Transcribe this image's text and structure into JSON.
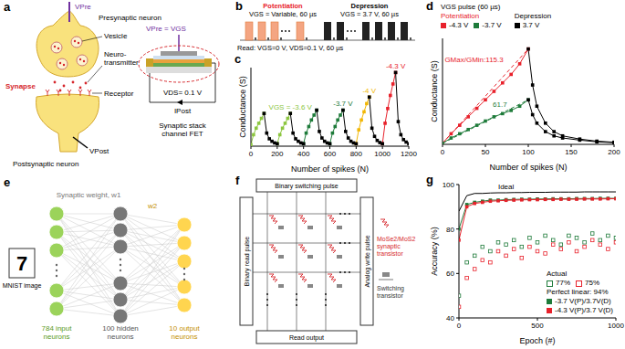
{
  "diagrams": {
    "a": {
      "panel": "a",
      "presynaptic": "Presynaptic neuron",
      "vesicle": "Vesicle",
      "neurotransmitter": "Neuro-transmitter",
      "synapse": "Synapse",
      "receptor": "Receptor",
      "postsynaptic": "Postsynaptic neuron",
      "v_pre": "VPre",
      "v_post": "VPost",
      "gate": "VPre = VGS",
      "drain": "VDS= 0.1 V",
      "current": "IPost",
      "device": "Synaptic stack channel FET"
    },
    "b": {
      "panel": "b",
      "potentiation": "Potentiation",
      "potentiation_pulse": "VGS = Variable, 60 µs",
      "depression": "Depression",
      "depression_pulse": "VGS = 3.7 V, 60 µs",
      "read": "Read: VGS=0 V, VDS=0.1 V, 60 µs"
    },
    "e": {
      "panel": "e",
      "digit": "7",
      "image": "MNIST image",
      "weight1": "Synaptic weight, w1",
      "weight2": "w2",
      "input": "784 input neurons",
      "hidden": "100 hidden neurons",
      "output": "10 output neurons"
    },
    "f": {
      "panel": "f",
      "top": "Binary switching pulse",
      "left": "Binary read pulse",
      "right": "Analog write pulse",
      "bottom": "Read output",
      "synaptic": "MoSe2/MoS2 synaptic transistor",
      "switching": "Switching transistor"
    }
  },
  "chart_data": [
    {
      "panel": "c",
      "type": "line",
      "xlabel": "Number of spikes (N)",
      "ylabel": "Conductance (S)",
      "xlim": [
        0,
        1200
      ],
      "xticks": [
        0,
        200,
        400,
        600,
        800,
        1000,
        1200
      ],
      "ylim": [
        0,
        48
      ],
      "tick_labels": "x",
      "series": [
        {
          "name": "VGS = -3.6 V",
          "color": "#8cc63f",
          "marker": "square",
          "x": [
            0,
            20,
            40,
            60,
            80,
            100,
            150,
            200,
            220,
            240,
            260,
            280,
            300
          ],
          "values": [
            1,
            7,
            11,
            14,
            17,
            20,
            null,
            1.5,
            7,
            11,
            14,
            17,
            20
          ]
        },
        {
          "name": "-3.7 V",
          "color": "#1e7b3a",
          "marker": "square",
          "x": [
            400,
            420,
            440,
            460,
            480,
            500,
            550,
            600,
            620,
            640,
            660,
            680,
            700
          ],
          "values": [
            1.5,
            8,
            12,
            16,
            19,
            22,
            null,
            1.5,
            8,
            12,
            16,
            19,
            22
          ]
        },
        {
          "name": "-4 V",
          "color": "#f2b705",
          "marker": "square",
          "x": [
            800,
            820,
            840,
            860,
            880,
            900
          ],
          "values": [
            1.5,
            10,
            16,
            21,
            26,
            30
          ]
        },
        {
          "name": "-4.3 V",
          "color": "#e8212b",
          "marker": "square",
          "x": [
            1000,
            1020,
            1040,
            1060,
            1080,
            1100
          ],
          "values": [
            1.5,
            14,
            23,
            31,
            38,
            45
          ]
        },
        {
          "color": "#000000",
          "marker": "square",
          "x": [
            100,
            120,
            140,
            160,
            180,
            200,
            250,
            300,
            320,
            340,
            360,
            380,
            400,
            450,
            500,
            520,
            540,
            560,
            580,
            600,
            650,
            700,
            720,
            740,
            760,
            780,
            800,
            850,
            900,
            920,
            940,
            960,
            980,
            1000,
            1050,
            1100,
            1120,
            1140,
            1160,
            1180,
            1200
          ],
          "values": [
            20,
            8,
            4.5,
            3,
            2,
            1.5,
            null,
            20,
            8,
            4.5,
            3,
            2,
            1.5,
            null,
            22,
            9,
            5,
            3,
            2,
            1.5,
            null,
            22,
            9,
            5,
            3,
            2,
            1.5,
            null,
            30,
            11,
            6,
            3.5,
            2.2,
            1.5,
            null,
            45,
            15,
            7,
            4,
            2.5,
            1.5
          ]
        }
      ]
    },
    {
      "panel": "d",
      "type": "line",
      "xlabel": "Number of spikes (N)",
      "ylabel": "Conductance (S)",
      "xlim": [
        0,
        200
      ],
      "xticks": [
        0,
        50,
        100,
        150,
        200
      ],
      "ylim": [
        0,
        50
      ],
      "tick_labels": "x",
      "legend": "top",
      "legend_title": "VGS pulse (60 µs)",
      "series": [
        {
          "name": "-4.3 V",
          "group": "Potentiation",
          "color": "#e8212b",
          "marker": "square",
          "x": [
            0,
            10,
            20,
            30,
            40,
            50,
            60,
            70,
            80,
            90,
            100
          ],
          "values": [
            0.5,
            5,
            9,
            13,
            17,
            21,
            25,
            29,
            33,
            38,
            45
          ]
        },
        {
          "name": "-3.7 V",
          "group": "Potentiation",
          "color": "#1e7b3a",
          "marker": "square",
          "x": [
            0,
            10,
            20,
            30,
            40,
            50,
            60,
            70,
            80,
            90,
            100
          ],
          "values": [
            0.5,
            3,
            5,
            7,
            9,
            11,
            13,
            14.5,
            16,
            18,
            21
          ]
        },
        {
          "name": "3.7 V",
          "group": "Depression",
          "color": "#000000",
          "marker": "square",
          "x": [
            100,
            105,
            110,
            120,
            130,
            140,
            160,
            180,
            200
          ],
          "values": [
            45,
            28,
            18,
            10,
            6,
            4,
            2.5,
            1.5,
            1
          ]
        },
        {
          "color": "#000000",
          "marker": "square",
          "x": [
            100,
            105,
            110,
            120,
            130,
            140,
            160,
            180,
            200
          ],
          "values": [
            21,
            14,
            10,
            6,
            4,
            3,
            2,
            1.2,
            0.8
          ]
        },
        {
          "color": "#e8212b",
          "line_style": "dashed",
          "x": [
            0,
            100
          ],
          "values": [
            0.5,
            45
          ]
        },
        {
          "color": "#1e7b3a",
          "line_style": "dashed",
          "x": [
            0,
            100
          ],
          "values": [
            0.5,
            21
          ]
        }
      ],
      "annotations": [
        {
          "text": "GMax/GMin:115.3",
          "x": 2,
          "y": 40,
          "color": "#e8212b"
        },
        {
          "text": "61.7",
          "x": 58,
          "y": 19,
          "color": "#1e7b3a"
        }
      ]
    },
    {
      "panel": "g",
      "type": "line",
      "xlabel": "Epoch (#)",
      "ylabel": "Accuracy (%)",
      "xlim": [
        0,
        1000
      ],
      "xticks": [
        0,
        500,
        1000
      ],
      "ylim": [
        40,
        100
      ],
      "yticks": [
        40,
        60,
        80,
        100
      ],
      "legend": "lower right",
      "x": [
        0,
        50,
        100,
        150,
        200,
        250,
        300,
        350,
        400,
        450,
        500,
        550,
        600,
        650,
        700,
        750,
        800,
        850,
        900,
        950,
        1000
      ],
      "series": [
        {
          "name": "77%",
          "group": "Actual",
          "color": "#1e7b3a",
          "marker": "open_square",
          "line_style": "none",
          "values": [
            50,
            65,
            68,
            72,
            70,
            74,
            73,
            75,
            72,
            76,
            74,
            77,
            75,
            73,
            77,
            76,
            74,
            78,
            75,
            77,
            76
          ]
        },
        {
          "name": "75%",
          "group": "Actual",
          "color": "#e8212b",
          "marker": "open_square",
          "line_style": "none",
          "values": [
            45,
            58,
            62,
            66,
            65,
            70,
            68,
            71,
            67,
            72,
            70,
            69,
            73,
            71,
            74,
            70,
            72,
            75,
            73,
            71,
            74
          ]
        },
        {
          "name": "Ideal",
          "color": "#000000",
          "values": [
            88,
            95,
            96,
            96,
            96.2,
            96.3,
            96.3,
            96.4,
            96.4,
            96.5,
            96.5,
            96.5,
            96.6,
            96.6,
            96.6,
            96.6,
            96.7,
            96.7,
            96.7,
            96.7,
            96.7
          ]
        },
        {
          "name": "-3.7 V(P)/3.7V(D)",
          "group": "Perfect linear: 94%",
          "color": "#1e7b3a",
          "marker": "square",
          "values": [
            80,
            91,
            92,
            92.5,
            93,
            93,
            93.2,
            93.3,
            93.4,
            93.4,
            93.5,
            93.5,
            93.6,
            93.6,
            93.6,
            93.7,
            93.7,
            93.7,
            93.8,
            93.8,
            93.8
          ]
        },
        {
          "name": "-4.3 V(P)/3.7 V(D)",
          "group": "Perfect linear: 94%",
          "color": "#e8212b",
          "marker": "square",
          "values": [
            75,
            90,
            91.5,
            92,
            92.5,
            92.7,
            92.9,
            93,
            93.1,
            93.2,
            93.2,
            93.3,
            93.3,
            93.4,
            93.4,
            93.4,
            93.5,
            93.5,
            93.5,
            93.6,
            93.6
          ]
        }
      ]
    }
  ]
}
